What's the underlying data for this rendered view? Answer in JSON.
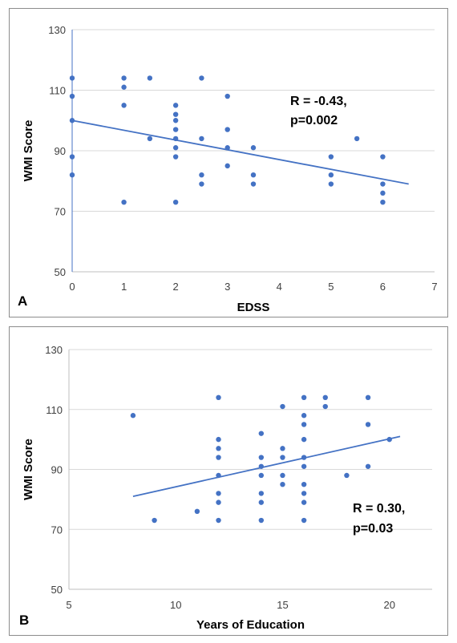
{
  "colors": {
    "series": "#4472c4",
    "grid": "#d9d9d9",
    "axis": "#bfbfbf",
    "border": "#8c8c8c"
  },
  "chart_data": [
    {
      "type": "scatter",
      "panel_label": "A",
      "xlabel": "EDSS",
      "ylabel": "WMI  Score",
      "xlim": [
        0,
        7
      ],
      "ylim": [
        50,
        130
      ],
      "xticks": [
        0,
        1,
        2,
        3,
        4,
        5,
        6,
        7
      ],
      "yticks": [
        50,
        70,
        90,
        110,
        130
      ],
      "grid": "horizontal",
      "annotation": [
        "R = -0.43,",
        "p=0.002"
      ],
      "trendline": {
        "x": [
          0,
          6.5
        ],
        "y": [
          100,
          79
        ]
      },
      "points": [
        [
          0,
          114
        ],
        [
          0,
          108
        ],
        [
          0,
          100
        ],
        [
          0,
          88
        ],
        [
          0,
          82
        ],
        [
          1,
          114
        ],
        [
          1,
          111
        ],
        [
          1,
          105
        ],
        [
          1,
          73
        ],
        [
          1.5,
          114
        ],
        [
          1.5,
          94
        ],
        [
          2,
          105
        ],
        [
          2,
          102
        ],
        [
          2,
          100
        ],
        [
          2,
          97
        ],
        [
          2,
          94
        ],
        [
          2,
          91
        ],
        [
          2,
          88
        ],
        [
          2,
          73
        ],
        [
          2.5,
          114
        ],
        [
          2.5,
          94
        ],
        [
          2.5,
          82
        ],
        [
          2.5,
          79
        ],
        [
          3,
          108
        ],
        [
          3,
          97
        ],
        [
          3,
          91
        ],
        [
          3,
          85
        ],
        [
          3.5,
          91
        ],
        [
          3.5,
          82
        ],
        [
          3.5,
          79
        ],
        [
          5,
          88
        ],
        [
          5,
          82
        ],
        [
          5,
          79
        ],
        [
          5.5,
          94
        ],
        [
          6,
          88
        ],
        [
          6,
          79
        ],
        [
          6,
          76
        ],
        [
          6,
          73
        ]
      ]
    },
    {
      "type": "scatter",
      "panel_label": "B",
      "xlabel": "Years of Education",
      "ylabel": "WMI  Score",
      "xlim": [
        5,
        22
      ],
      "ylim": [
        50,
        130
      ],
      "xticks": [
        5,
        10,
        15,
        20
      ],
      "yticks": [
        50,
        70,
        90,
        110,
        130
      ],
      "grid": "horizontal",
      "annotation": [
        "R = 0.30,",
        "p=0.03"
      ],
      "trendline": {
        "x": [
          8,
          20.5
        ],
        "y": [
          81,
          101
        ]
      },
      "points": [
        [
          8,
          108
        ],
        [
          9,
          73
        ],
        [
          11,
          76
        ],
        [
          12,
          114
        ],
        [
          12,
          100
        ],
        [
          12,
          97
        ],
        [
          12,
          94
        ],
        [
          12,
          88
        ],
        [
          12,
          82
        ],
        [
          12,
          79
        ],
        [
          12,
          73
        ],
        [
          14,
          102
        ],
        [
          14,
          94
        ],
        [
          14,
          91
        ],
        [
          14,
          88
        ],
        [
          14,
          82
        ],
        [
          14,
          79
        ],
        [
          14,
          73
        ],
        [
          15,
          111
        ],
        [
          15,
          97
        ],
        [
          15,
          94
        ],
        [
          15,
          88
        ],
        [
          15,
          85
        ],
        [
          16,
          114
        ],
        [
          16,
          108
        ],
        [
          16,
          105
        ],
        [
          16,
          100
        ],
        [
          16,
          94
        ],
        [
          16,
          91
        ],
        [
          16,
          85
        ],
        [
          16,
          82
        ],
        [
          16,
          79
        ],
        [
          16,
          73
        ],
        [
          17,
          114
        ],
        [
          17,
          111
        ],
        [
          18,
          88
        ],
        [
          19,
          114
        ],
        [
          19,
          105
        ],
        [
          19,
          91
        ],
        [
          20,
          100
        ]
      ]
    }
  ]
}
